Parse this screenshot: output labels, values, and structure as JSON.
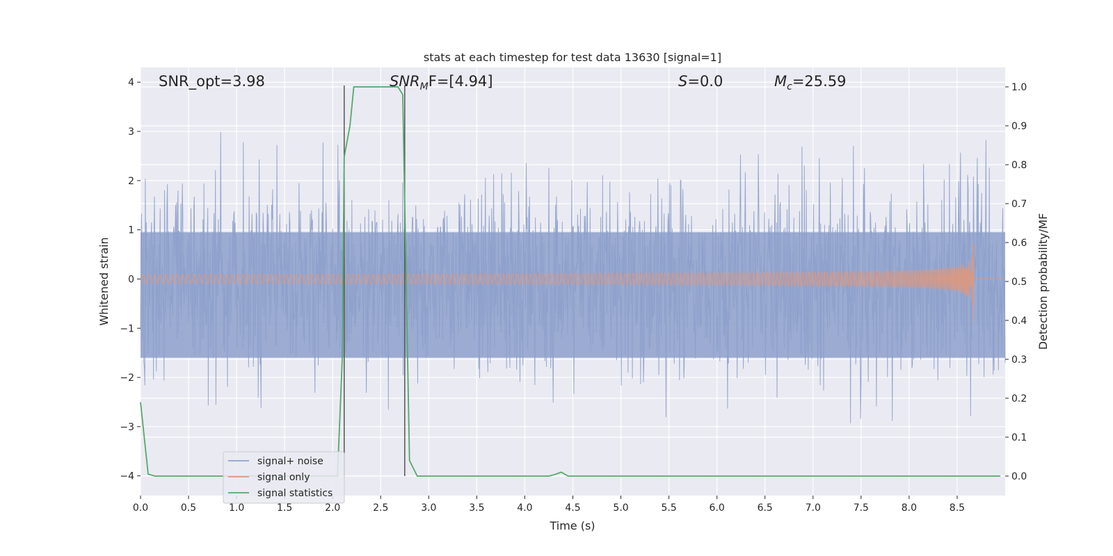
{
  "chart_data": {
    "type": "line",
    "title": "stats at each timestep for test data 13630 [signal=1]",
    "xlabel": "Time (s)",
    "ylabel": "Whitened strain",
    "y2label": "Detection probability/MF",
    "xlim": [
      0,
      9.0
    ],
    "ylim": [
      -4.4,
      4.3
    ],
    "y2lim": [
      -0.05,
      1.05
    ],
    "x_ticks": [
      "0.0",
      "0.5",
      "1.0",
      "1.5",
      "2.0",
      "2.5",
      "3.0",
      "3.5",
      "4.0",
      "4.5",
      "5.0",
      "5.5",
      "6.0",
      "6.5",
      "7.0",
      "7.5",
      "8.0",
      "8.5"
    ],
    "y_ticks": [
      "4",
      "3",
      "2",
      "1",
      "0",
      "−1",
      "−2",
      "−3",
      "−4"
    ],
    "y2_ticks": [
      "1.0",
      "0.9",
      "0.8",
      "0.7",
      "0.6",
      "0.5",
      "0.4",
      "0.3",
      "0.2",
      "0.1",
      "0.0"
    ],
    "grid": true,
    "legend_position": "lower-left",
    "annotations": {
      "snr_opt": "SNR_opt=3.98",
      "snr_mf_sym": "SNR",
      "snr_mf_sub": "M",
      "snr_mf_rest": "F=[4.94]",
      "s_sym": "S",
      "s_rest": "=0.0",
      "mc_sym": "M",
      "mc_sub": "c",
      "mc_rest": "=25.59"
    },
    "vertical_markers": [
      2.12,
      2.75
    ],
    "series": [
      {
        "name": "signal+ noise",
        "axis": "left",
        "color": "#8da0cb",
        "description_values": {
          "noise_rms": 1.0
        }
      },
      {
        "name": "signal only",
        "axis": "left",
        "color": "#e1977a",
        "chirp_peak_time": 8.67,
        "chirp_peak_amplitude": 0.85
      },
      {
        "name": "signal statistics",
        "axis": "right",
        "color": "#55a868",
        "x": [
          0.0,
          0.08,
          0.15,
          2.0,
          2.05,
          2.1,
          2.12,
          2.18,
          2.22,
          2.3,
          2.6,
          2.68,
          2.73,
          2.75,
          2.8,
          2.88,
          3.0,
          4.25,
          4.3,
          4.38,
          4.45,
          8.95
        ],
        "values": [
          0.19,
          0.005,
          0.0,
          0.0,
          0.0,
          0.3,
          0.82,
          0.9,
          1.0,
          1.0,
          1.0,
          1.0,
          0.98,
          0.7,
          0.04,
          0.0,
          0.0,
          0.0,
          0.003,
          0.01,
          0.0,
          0.0
        ]
      }
    ]
  }
}
